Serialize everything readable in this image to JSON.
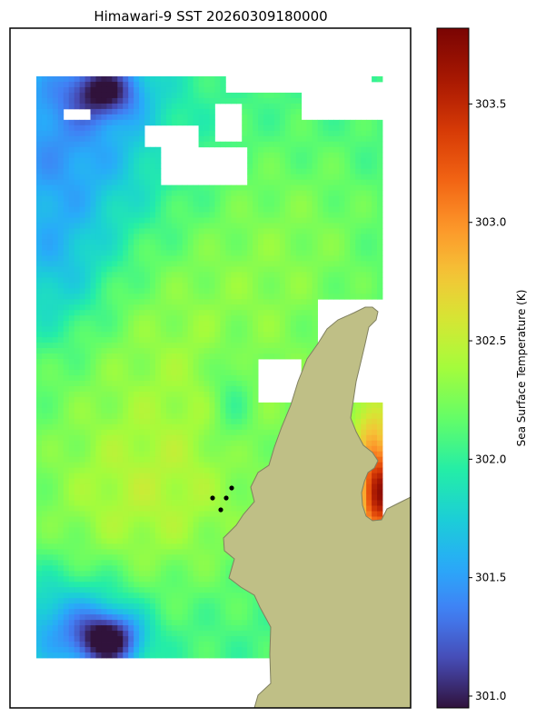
{
  "chart_data": {
    "type": "heatmap",
    "title": "Himawari-9 SST 20260309180000",
    "colorbar": {
      "label": "Sea Surface Temperature (K)",
      "vmin": 300.95,
      "vmax": 303.82,
      "ticks": [
        "301.0",
        "301.5",
        "302.0",
        "302.5",
        "303.0",
        "303.5"
      ],
      "colormap": "turbo"
    },
    "field": {
      "description_units": "K",
      "cols": 64,
      "rows": 107,
      "regions": [
        {
          "name": "cool-northwest",
          "value": 301.45
        },
        {
          "name": "cold-northwest-core",
          "value": 301.1
        },
        {
          "name": "cold-southwest-core",
          "value": 301.05
        },
        {
          "name": "warm-center",
          "value": 302.35
        },
        {
          "name": "warm-northeast-band",
          "value": 302.2
        },
        {
          "name": "hot-coastal-east",
          "value": 303.6
        }
      ]
    },
    "markers": [
      {
        "name": "station-1"
      },
      {
        "name": "station-2"
      },
      {
        "name": "station-3"
      },
      {
        "name": "station-4"
      }
    ],
    "colors": {
      "land": "#bfbf86",
      "land_edge": "#808060",
      "frame": "#000000",
      "cloud_mask": "#ffffff"
    }
  }
}
